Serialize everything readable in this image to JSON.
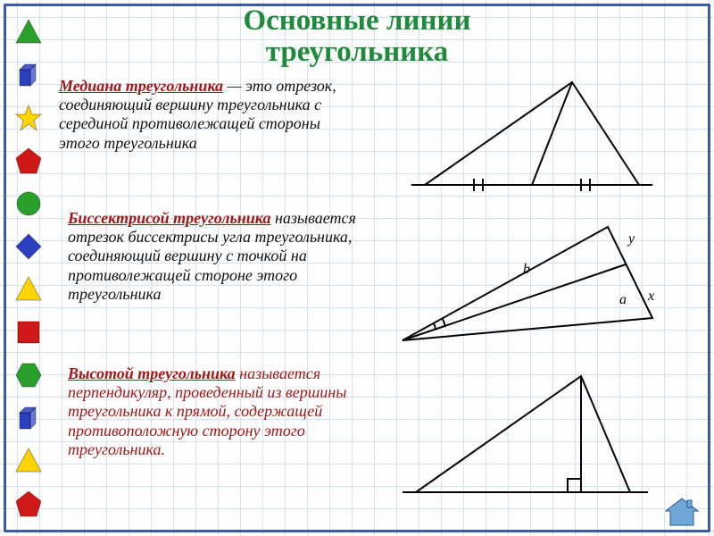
{
  "title_color": "#1f8a3b",
  "title_l1": "Основные линии",
  "title_l2": "треугольника",
  "sections": {
    "median": {
      "term": "Медиана треугольника",
      "term_color": "#a01818",
      "body": " — это отрезок, соединяющий вершину треугольника с серединой противолежащей стороны этого треугольника",
      "body_color": "#111"
    },
    "bisector": {
      "term": "Биссектрисой треугольника",
      "term_color": "#a01818",
      "body": " называется отрезок биссектрисы угла треугольника, соединяющий вершину с точкой на противолежащей стороне этого треугольника",
      "body_color": "#111"
    },
    "altitude": {
      "term": "Высотой треугольника",
      "term_color": "#a01818",
      "body": " называется перпендикуляр, проведенный из вершины треугольника к прямой, содержащей противоположную сторону этого треугольника.",
      "body_color": "#a01818"
    }
  },
  "labels": {
    "b": "b",
    "a": "a",
    "x": "x",
    "y": "y"
  },
  "diagram_color": "#000",
  "sidebar_shapes": [
    {
      "kind": "triangle",
      "fill": "#2aa02a"
    },
    {
      "kind": "cube",
      "fill": "#2a3fc0"
    },
    {
      "kind": "star",
      "fill": "#ffd400"
    },
    {
      "kind": "pentagon",
      "fill": "#d01818"
    },
    {
      "kind": "circle",
      "fill": "#2aa02a"
    },
    {
      "kind": "rhombus",
      "fill": "#2a3fc0"
    },
    {
      "kind": "triangle",
      "fill": "#ffd400"
    },
    {
      "kind": "square",
      "fill": "#d01818"
    },
    {
      "kind": "hexagon",
      "fill": "#2aa02a"
    },
    {
      "kind": "cube",
      "fill": "#2a3fc0"
    },
    {
      "kind": "triangle",
      "fill": "#ffd400"
    },
    {
      "kind": "pentagon",
      "fill": "#d01818"
    }
  ],
  "home_icon_color": "#6fa8d8"
}
